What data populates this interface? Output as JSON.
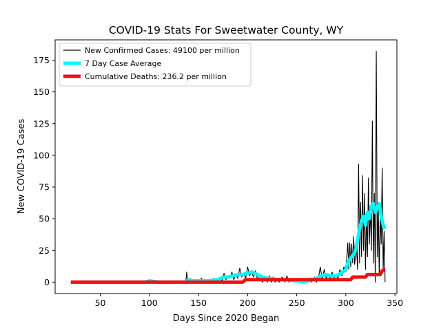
{
  "chart_data": {
    "type": "line",
    "title": "COVID-19 Stats For Sweetwater County, WY",
    "xlabel": "Days Since 2020 Began",
    "ylabel": "New COVID-19 Cases",
    "xlim": [
      4,
      352
    ],
    "ylim": [
      -9,
      191
    ],
    "xticks": [
      50,
      100,
      150,
      200,
      250,
      300,
      350
    ],
    "yticks": [
      0,
      25,
      50,
      75,
      100,
      125,
      150,
      175
    ],
    "grid": false,
    "legend_position": "top-left",
    "series": [
      {
        "name": "New Confirmed Cases: 49100 per million",
        "color": "#000000",
        "points": [
          [
            20,
            0
          ],
          [
            60,
            0
          ],
          [
            95,
            1
          ],
          [
            100,
            0
          ],
          [
            105,
            1
          ],
          [
            110,
            0
          ],
          [
            120,
            0
          ],
          [
            130,
            0
          ],
          [
            137,
            0
          ],
          [
            138,
            8
          ],
          [
            139,
            0
          ],
          [
            145,
            1
          ],
          [
            150,
            0
          ],
          [
            153,
            3
          ],
          [
            156,
            0
          ],
          [
            160,
            1
          ],
          [
            163,
            0
          ],
          [
            165,
            3
          ],
          [
            168,
            0
          ],
          [
            170,
            2
          ],
          [
            172,
            4
          ],
          [
            174,
            1
          ],
          [
            176,
            7
          ],
          [
            178,
            2
          ],
          [
            180,
            5
          ],
          [
            182,
            3
          ],
          [
            184,
            8
          ],
          [
            186,
            2
          ],
          [
            188,
            6
          ],
          [
            190,
            3
          ],
          [
            192,
            11
          ],
          [
            194,
            4
          ],
          [
            196,
            7
          ],
          [
            198,
            3
          ],
          [
            200,
            12
          ],
          [
            202,
            5
          ],
          [
            204,
            8
          ],
          [
            206,
            4
          ],
          [
            208,
            9
          ],
          [
            210,
            2
          ],
          [
            212,
            5
          ],
          [
            215,
            0
          ],
          [
            218,
            3
          ],
          [
            220,
            0
          ],
          [
            222,
            5
          ],
          [
            224,
            0
          ],
          [
            226,
            4
          ],
          [
            228,
            0
          ],
          [
            230,
            3
          ],
          [
            232,
            0
          ],
          [
            235,
            4
          ],
          [
            238,
            0
          ],
          [
            240,
            5
          ],
          [
            242,
            0
          ],
          [
            245,
            3
          ],
          [
            248,
            0
          ],
          [
            250,
            2
          ],
          [
            252,
            0
          ],
          [
            255,
            1
          ],
          [
            258,
            0
          ],
          [
            262,
            2
          ],
          [
            265,
            0
          ],
          [
            268,
            4
          ],
          [
            270,
            0
          ],
          [
            272,
            3
          ],
          [
            274,
            12
          ],
          [
            276,
            2
          ],
          [
            278,
            10
          ],
          [
            280,
            3
          ],
          [
            282,
            6
          ],
          [
            284,
            2
          ],
          [
            286,
            8
          ],
          [
            288,
            3
          ],
          [
            290,
            6
          ],
          [
            292,
            3
          ],
          [
            294,
            10
          ],
          [
            296,
            5
          ],
          [
            298,
            12
          ],
          [
            300,
            8
          ],
          [
            302,
            31
          ],
          [
            303,
            10
          ],
          [
            304,
            31
          ],
          [
            305,
            12
          ],
          [
            306,
            30
          ],
          [
            307,
            15
          ],
          [
            308,
            36
          ],
          [
            309,
            14
          ],
          [
            310,
            22
          ],
          [
            311,
            25
          ],
          [
            312,
            10
          ],
          [
            313,
            93
          ],
          [
            314,
            15
          ],
          [
            315,
            63
          ],
          [
            316,
            20
          ],
          [
            317,
            84
          ],
          [
            318,
            25
          ],
          [
            319,
            70
          ],
          [
            320,
            10
          ],
          [
            321,
            55
          ],
          [
            322,
            20
          ],
          [
            323,
            82
          ],
          [
            324,
            30
          ],
          [
            325,
            60
          ],
          [
            326,
            25
          ],
          [
            327,
            127
          ],
          [
            328,
            15
          ],
          [
            329,
            70
          ],
          [
            330,
            0
          ],
          [
            331,
            182
          ],
          [
            332,
            20
          ],
          [
            333,
            60
          ],
          [
            334,
            5
          ],
          [
            335,
            55
          ],
          [
            336,
            30
          ],
          [
            337,
            90
          ],
          [
            338,
            10
          ],
          [
            339,
            40
          ],
          [
            340,
            0
          ]
        ]
      },
      {
        "name": "7 Day Case Average",
        "color": "#00f8f8",
        "points": [
          [
            20,
            0
          ],
          [
            95,
            0
          ],
          [
            100,
            1
          ],
          [
            110,
            0
          ],
          [
            137,
            0
          ],
          [
            140,
            2
          ],
          [
            145,
            1
          ],
          [
            150,
            1
          ],
          [
            160,
            1
          ],
          [
            170,
            2
          ],
          [
            175,
            4
          ],
          [
            180,
            4
          ],
          [
            185,
            5
          ],
          [
            190,
            6
          ],
          [
            195,
            6
          ],
          [
            200,
            7
          ],
          [
            205,
            8
          ],
          [
            210,
            6
          ],
          [
            215,
            4
          ],
          [
            220,
            3
          ],
          [
            230,
            2
          ],
          [
            240,
            2
          ],
          [
            250,
            1
          ],
          [
            258,
            0
          ],
          [
            262,
            1
          ],
          [
            270,
            3
          ],
          [
            275,
            5
          ],
          [
            280,
            6
          ],
          [
            285,
            5
          ],
          [
            290,
            5
          ],
          [
            295,
            7
          ],
          [
            300,
            10
          ],
          [
            302,
            15
          ],
          [
            304,
            18
          ],
          [
            306,
            20
          ],
          [
            308,
            22
          ],
          [
            310,
            25
          ],
          [
            312,
            33
          ],
          [
            314,
            42
          ],
          [
            316,
            48
          ],
          [
            318,
            52
          ],
          [
            320,
            45
          ],
          [
            322,
            55
          ],
          [
            324,
            50
          ],
          [
            326,
            60
          ],
          [
            328,
            62
          ],
          [
            330,
            55
          ],
          [
            332,
            58
          ],
          [
            334,
            62
          ],
          [
            336,
            52
          ],
          [
            338,
            45
          ],
          [
            340,
            42
          ]
        ]
      },
      {
        "name": "Cumulative Deaths: 236.2 per million",
        "color": "#ee1111",
        "points": [
          [
            20,
            0
          ],
          [
            100,
            0
          ],
          [
            110,
            0
          ],
          [
            195,
            0
          ],
          [
            198,
            2
          ],
          [
            305,
            2
          ],
          [
            307,
            4
          ],
          [
            320,
            4
          ],
          [
            322,
            6
          ],
          [
            335,
            6
          ],
          [
            337,
            9
          ],
          [
            340,
            10
          ]
        ]
      }
    ]
  }
}
